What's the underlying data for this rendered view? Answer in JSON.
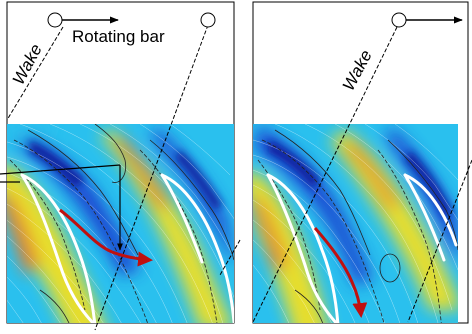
{
  "labels": {
    "wake_left": "Wake",
    "wake_right": "Wake",
    "rotating_bar": "Rotating bar"
  },
  "colors": {
    "field_base": "#2ac0ee",
    "low_velocity": "#1a3fd0",
    "high_velocity": "#f2e020",
    "peak_velocity": "#f07a22",
    "flow_arrow": "#c01010",
    "blade": "#ffffff",
    "contour": "#222222"
  }
}
